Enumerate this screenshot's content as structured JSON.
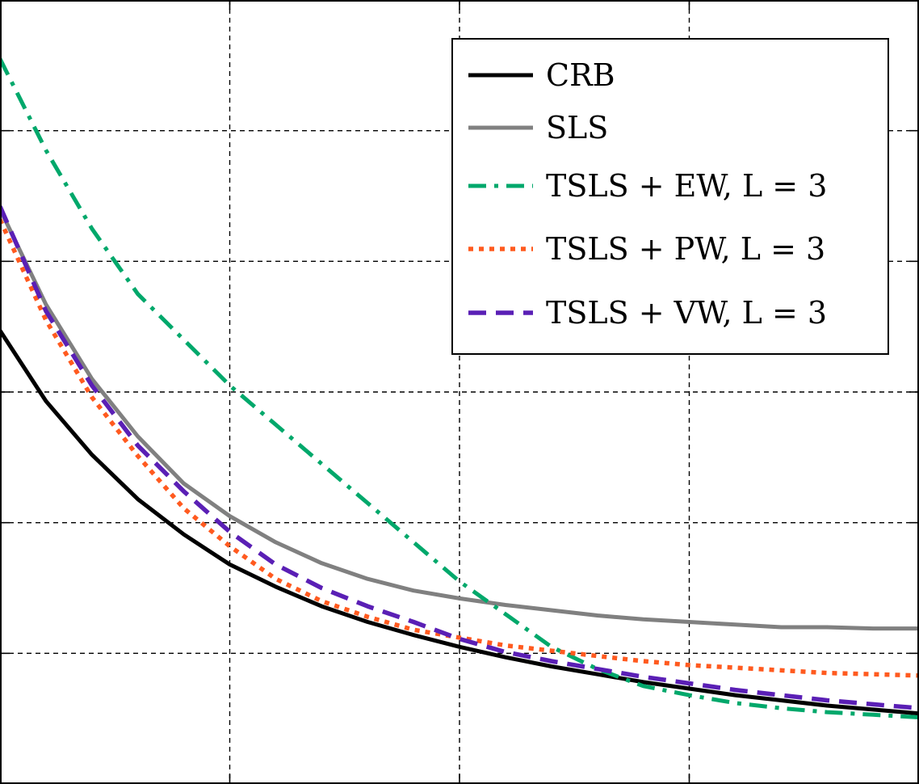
{
  "chart_data": {
    "type": "line",
    "x": [
      0,
      0.1,
      0.2,
      0.3,
      0.4,
      0.5,
      0.6,
      0.7,
      0.8,
      0.9,
      1.0,
      1.1,
      1.2,
      1.3,
      1.4,
      1.5,
      1.6,
      1.7,
      1.8,
      1.9,
      2.0
    ],
    "xlim": [
      0,
      2
    ],
    "ylim": [
      0,
      6
    ],
    "grid": true,
    "legend": "top-right",
    "series": [
      {
        "name": "CRB",
        "color": "#000000",
        "style": "solid",
        "values": [
          3.47,
          2.93,
          2.52,
          2.18,
          1.91,
          1.68,
          1.51,
          1.36,
          1.24,
          1.14,
          1.05,
          0.97,
          0.9,
          0.84,
          0.78,
          0.73,
          0.68,
          0.64,
          0.6,
          0.57,
          0.54
        ]
      },
      {
        "name": "SLS",
        "color": "#808080",
        "style": "solid",
        "values": [
          4.4,
          3.67,
          3.1,
          2.66,
          2.3,
          2.05,
          1.85,
          1.69,
          1.57,
          1.48,
          1.42,
          1.37,
          1.33,
          1.29,
          1.26,
          1.24,
          1.22,
          1.2,
          1.2,
          1.19,
          1.19
        ]
      },
      {
        "name": "TSLS + EW, L = 3",
        "color": "#00a86b",
        "style": "dashdot",
        "values": [
          5.55,
          4.85,
          4.25,
          3.75,
          3.4,
          3.05,
          2.75,
          2.45,
          2.15,
          1.85,
          1.55,
          1.3,
          1.05,
          0.88,
          0.75,
          0.68,
          0.62,
          0.58,
          0.55,
          0.53,
          0.51
        ]
      },
      {
        "name": "TSLS + PW, L = 3",
        "color": "#ff5a1f",
        "style": "dotted",
        "values": [
          4.32,
          3.55,
          2.96,
          2.51,
          2.11,
          1.82,
          1.57,
          1.4,
          1.28,
          1.18,
          1.12,
          1.06,
          1.02,
          0.98,
          0.94,
          0.91,
          0.89,
          0.87,
          0.85,
          0.84,
          0.83
        ]
      },
      {
        "name": "TSLS + VW, L = 3",
        "color": "#5a1fb5",
        "style": "dashed",
        "values": [
          4.42,
          3.62,
          3.05,
          2.59,
          2.24,
          1.93,
          1.68,
          1.5,
          1.36,
          1.24,
          1.11,
          1.01,
          0.94,
          0.88,
          0.82,
          0.77,
          0.72,
          0.68,
          0.64,
          0.61,
          0.58
        ]
      }
    ]
  }
}
